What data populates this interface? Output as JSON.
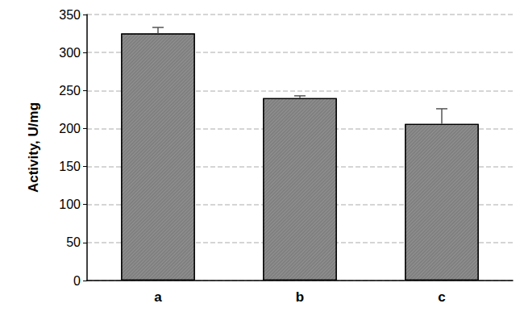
{
  "chart_data": {
    "type": "bar",
    "y_label": "Activity, U/mg",
    "categories": [
      "a",
      "b",
      "c"
    ],
    "values": [
      325,
      240,
      206
    ],
    "errors": [
      8,
      3,
      20
    ],
    "color": "#7f7f7f",
    "ylim": [
      0,
      350
    ],
    "yticks": [
      0,
      50,
      100,
      150,
      200,
      250,
      300,
      350
    ],
    "grid": true
  }
}
